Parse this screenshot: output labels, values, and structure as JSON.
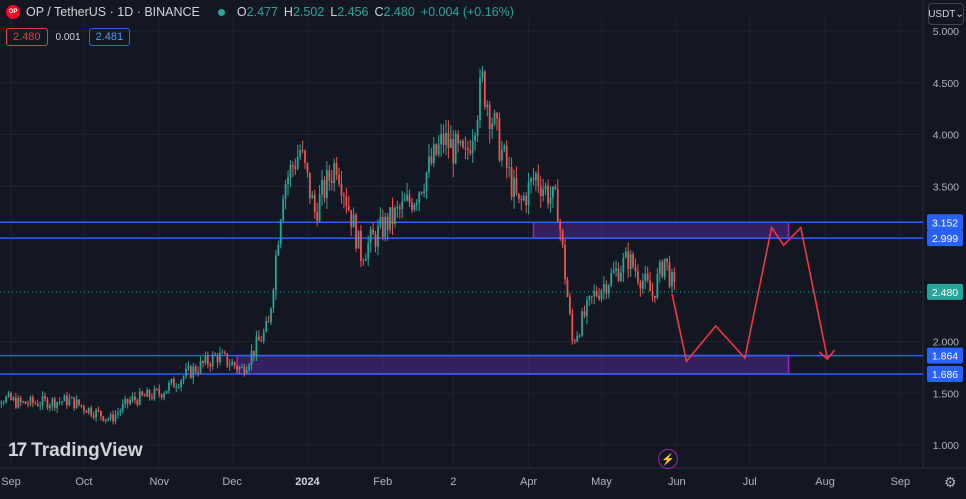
{
  "legend": {
    "logo_text": "OP",
    "symbol": "OP / TetherUS · 1D · BINANCE",
    "open_key": "O",
    "open": "2.477",
    "high_key": "H",
    "high": "2.502",
    "low_key": "L",
    "low": "2.456",
    "close_key": "C",
    "close": "2.480",
    "change": "+0.004 (+0.16%)",
    "sell_price": "2.480",
    "spread": "0.001",
    "buy_price": "2.481"
  },
  "currency": "USDT",
  "watermark": "TradingView",
  "colors": {
    "background": "#131722",
    "up": "#26a69a",
    "down": "#ef5350",
    "level_line": "#2962ff",
    "zone_border": "#9c27b0",
    "zone_fill": "#5b2ea6",
    "projection": "#f23645"
  },
  "chart_data": {
    "type": "candlestick",
    "title": "",
    "xlabel": "",
    "ylabel": "",
    "ylim": [
      0.9,
      5.1
    ],
    "y_ticks": [
      "5.000",
      "4.500",
      "4.000",
      "3.500",
      "2.000",
      "1.500",
      "1.000"
    ],
    "x_ticks": [
      "Sep",
      "Oct",
      "Nov",
      "Dec",
      "2024",
      "Feb",
      "2",
      "Apr",
      "May",
      "Jun",
      "Jul",
      "Aug",
      "Sep"
    ],
    "price_levels": [
      "3.152",
      "2.999",
      "2.480",
      "1.864",
      "1.686"
    ],
    "zones": [
      {
        "from": "2024-04-03",
        "to": "2024-07-17",
        "low": 2.999,
        "high": 3.152
      },
      {
        "from": "2023-12-03",
        "to": "2024-07-17",
        "low": 1.686,
        "high": 1.864
      }
    ],
    "projection": [
      {
        "date": "2024-05-30",
        "price": 2.46
      },
      {
        "date": "2024-06-05",
        "price": 1.81
      },
      {
        "date": "2024-06-17",
        "price": 2.15
      },
      {
        "date": "2024-06-29",
        "price": 1.84
      },
      {
        "date": "2024-07-10",
        "price": 3.1
      },
      {
        "date": "2024-07-15",
        "price": 2.93
      },
      {
        "date": "2024-07-22",
        "price": 3.1
      },
      {
        "date": "2024-08-02",
        "price": 1.83
      }
    ],
    "candles_anchor_close": [
      {
        "date": "2023-08-20",
        "price": 1.52
      },
      {
        "date": "2023-09-05",
        "price": 1.4
      },
      {
        "date": "2023-09-25",
        "price": 1.43
      },
      {
        "date": "2023-10-12",
        "price": 1.25
      },
      {
        "date": "2023-10-20",
        "price": 1.43
      },
      {
        "date": "2023-11-01",
        "price": 1.5
      },
      {
        "date": "2023-11-14",
        "price": 1.71
      },
      {
        "date": "2023-11-25",
        "price": 1.86
      },
      {
        "date": "2023-12-05",
        "price": 1.73
      },
      {
        "date": "2023-12-16",
        "price": 2.15
      },
      {
        "date": "2023-12-22",
        "price": 3.5
      },
      {
        "date": "2023-12-29",
        "price": 3.85
      },
      {
        "date": "2024-01-04",
        "price": 3.25
      },
      {
        "date": "2024-01-13",
        "price": 3.75
      },
      {
        "date": "2024-01-23",
        "price": 2.85
      },
      {
        "date": "2024-02-01",
        "price": 3.1
      },
      {
        "date": "2024-02-14",
        "price": 3.4
      },
      {
        "date": "2024-02-26",
        "price": 3.95
      },
      {
        "date": "2024-03-06",
        "price": 3.75
      },
      {
        "date": "2024-03-13",
        "price": 4.5
      },
      {
        "date": "2024-03-20",
        "price": 3.9
      },
      {
        "date": "2024-03-28",
        "price": 3.3
      },
      {
        "date": "2024-04-04",
        "price": 3.6
      },
      {
        "date": "2024-04-13",
        "price": 3.3
      },
      {
        "date": "2024-04-19",
        "price": 2.0
      },
      {
        "date": "2024-04-28",
        "price": 2.45
      },
      {
        "date": "2024-05-12",
        "price": 2.8
      },
      {
        "date": "2024-05-22",
        "price": 2.45
      },
      {
        "date": "2024-05-27",
        "price": 2.8
      },
      {
        "date": "2024-05-31",
        "price": 2.48
      }
    ]
  }
}
